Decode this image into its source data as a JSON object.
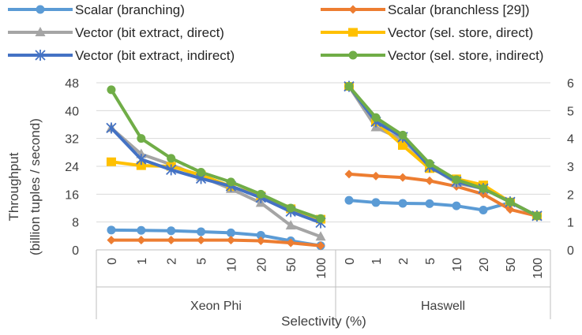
{
  "chart_data": {
    "type": "line",
    "xlabel": "Selectivity (%)",
    "ylabel": [
      "Throughput",
      "(billion tuples / second)"
    ],
    "y_left": {
      "min": 0,
      "max": 48,
      "ticks": [
        0,
        8,
        16,
        24,
        32,
        40,
        48
      ]
    },
    "y_right": {
      "min": 0,
      "max": 6,
      "ticks": [
        0,
        1,
        2,
        3,
        4,
        5,
        6
      ]
    },
    "grid": "horizontal",
    "legend_position": "top",
    "groups": [
      {
        "name": "Xeon Phi",
        "axis": "left",
        "categories": [
          "0",
          "1",
          "2",
          "5",
          "10",
          "20",
          "50",
          "100"
        ],
        "series": [
          {
            "name": "Scalar (branching)",
            "values": [
              5.7,
              5.6,
              5.5,
              5.2,
              4.9,
              4.2,
              2.6,
              1.2
            ]
          },
          {
            "name": "Scalar (branchless [29])",
            "values": [
              2.8,
              2.8,
              2.8,
              2.8,
              2.8,
              2.6,
              2.0,
              1.2
            ]
          },
          {
            "name": "Vector (bit extract, direct)",
            "values": [
              35.0,
              27.5,
              24.5,
              21.0,
              17.5,
              13.5,
              7.0,
              3.8
            ]
          },
          {
            "name": "Vector (sel. store, direct)",
            "values": [
              25.3,
              24.2,
              24.0,
              21.5,
              18.2,
              15.5,
              11.8,
              8.8
            ]
          },
          {
            "name": "Vector (bit extract, indirect)",
            "values": [
              35.0,
              26.0,
              23.0,
              20.5,
              18.3,
              15.0,
              11.0,
              7.8
            ]
          },
          {
            "name": "Vector (sel. store, indirect)",
            "values": [
              46.0,
              32.0,
              26.3,
              22.3,
              19.5,
              16.0,
              12.0,
              9.0
            ]
          }
        ]
      },
      {
        "name": "Haswell",
        "axis": "right",
        "categories": [
          "0",
          "1",
          "2",
          "5",
          "10",
          "20",
          "50",
          "100"
        ],
        "series": [
          {
            "name": "Scalar (branching)",
            "values": [
              1.78,
              1.7,
              1.67,
              1.66,
              1.58,
              1.43,
              1.7,
              1.22
            ]
          },
          {
            "name": "Scalar (branchless [29])",
            "values": [
              2.72,
              2.65,
              2.6,
              2.48,
              2.28,
              2.0,
              1.45,
              1.22
            ]
          },
          {
            "name": "Vector (bit extract, direct)",
            "values": [
              5.87,
              4.4,
              3.95,
              3.0,
              2.4,
              2.2,
              1.72,
              1.22
            ]
          },
          {
            "name": "Vector (sel. store, direct)",
            "values": [
              5.87,
              4.6,
              3.75,
              2.92,
              2.55,
              2.33,
              1.72,
              1.22
            ]
          },
          {
            "name": "Vector (bit extract, indirect)",
            "values": [
              5.87,
              4.6,
              4.05,
              2.98,
              2.45,
              2.2,
              1.72,
              1.22
            ]
          },
          {
            "name": "Vector (sel. store, indirect)",
            "values": [
              5.87,
              4.75,
              4.12,
              3.1,
              2.52,
              2.2,
              1.72,
              1.22
            ]
          }
        ]
      }
    ]
  },
  "legend": [
    {
      "label": "Scalar (branching)",
      "color": "#5B9BD5",
      "marker": "circle"
    },
    {
      "label": "Scalar (branchless [29])",
      "color": "#ED7D31",
      "marker": "diamond"
    },
    {
      "label": "Vector (bit extract, direct)",
      "color": "#A5A5A5",
      "marker": "triangle"
    },
    {
      "label": "Vector (sel. store, direct)",
      "color": "#FFC000",
      "marker": "square"
    },
    {
      "label": "Vector (bit extract, indirect)",
      "color": "#4472C4",
      "marker": "star"
    },
    {
      "label": "Vector (sel. store, indirect)",
      "color": "#70AD47",
      "marker": "circle"
    }
  ],
  "colors": {
    "axis": "#BFBFBF",
    "grid": "#D9D9D9",
    "text": "#404040"
  }
}
